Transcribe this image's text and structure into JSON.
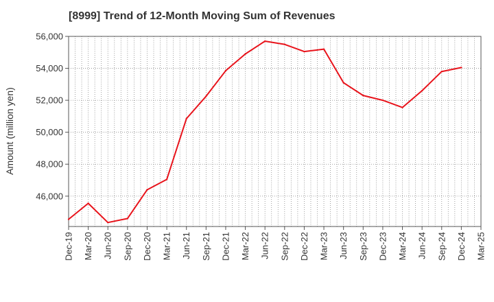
{
  "chart_data": {
    "type": "line",
    "title": "[8999]  Trend of 12-Month Moving Sum of Revenues",
    "xlabel": "",
    "ylabel": "Amount (million yen)",
    "x": [
      "Dec-19",
      "Mar-20",
      "Jun-20",
      "Sep-20",
      "Dec-20",
      "Mar-21",
      "Jun-21",
      "Sep-21",
      "Dec-21",
      "Mar-22",
      "Jun-22",
      "Sep-22",
      "Dec-22",
      "Mar-23",
      "Jun-23",
      "Sep-23",
      "Dec-23",
      "Mar-24",
      "Jun-24",
      "Sep-24",
      "Dec-24",
      "Mar-25"
    ],
    "series": [
      {
        "values": [
          44550,
          45550,
          44350,
          44600,
          46400,
          47050,
          50850,
          52250,
          53850,
          54900,
          55700,
          55500,
          55050,
          55200,
          53100,
          52300,
          52000,
          51550,
          52600,
          53800,
          54050,
          null
        ],
        "color": "#e8131b"
      }
    ],
    "yticks": [
      46000,
      48000,
      50000,
      52000,
      54000,
      56000
    ],
    "ylim": [
      44100,
      56000
    ],
    "grid": true,
    "colors": {
      "line": "#e8131b",
      "grid": "#888888",
      "axis": "#555555",
      "text": "#333333"
    }
  }
}
